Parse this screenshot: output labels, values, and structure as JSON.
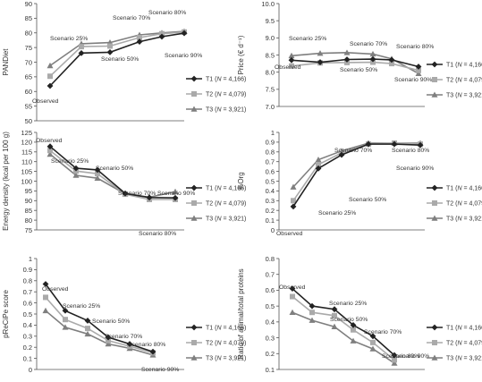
{
  "series_names": [
    "T1",
    "T2",
    "T3"
  ],
  "series_n": [
    "4,166",
    "4,079",
    "3,921"
  ],
  "n_label": "N",
  "colors": [
    "#222222",
    "#aaaaaa",
    "#7f7f7f"
  ],
  "markers": [
    "diamond",
    "square",
    "triangle"
  ],
  "chart_data": [
    {
      "type": "line",
      "ylabel": "PANDiet",
      "ylim": [
        50,
        90
      ],
      "yticks": [
        "50",
        "55",
        "60",
        "65",
        "70",
        "75",
        "80",
        "85",
        "90"
      ],
      "grid": false,
      "legend": "right",
      "x": [
        "Observed",
        "Scenario 25%",
        "Scenario 50%",
        "Scenario 70%",
        "Scenario 80%",
        "Scenario 90%"
      ],
      "series": [
        {
          "name": "T1",
          "values": [
            61.9,
            73.1,
            73.4,
            77.0,
            78.7,
            79.9
          ]
        },
        {
          "name": "T2",
          "values": [
            65.2,
            75.3,
            75.5,
            78.4,
            79.7,
            80.3
          ]
        },
        {
          "name": "T3",
          "values": [
            68.8,
            76.3,
            76.7,
            79.3,
            80.0,
            80.5
          ]
        }
      ],
      "annotations": [
        "Observed",
        "Scenario 25%",
        "Scenario 50%",
        "Scenario 70%",
        "Scenario 80%",
        "Scenario 90%"
      ]
    },
    {
      "type": "line",
      "ylabel": "Price (€ d⁻¹)",
      "ylim": [
        7.0,
        10.0
      ],
      "yticks": [
        "7.0",
        "7.5",
        "8.0",
        "8.5",
        "9.0",
        "9.5",
        "10.0"
      ],
      "grid": false,
      "legend": "right",
      "x": [
        "Observed",
        "Scenario 25%",
        "Scenario 50%",
        "Scenario 70%",
        "Scenario 80%",
        "Scenario 90%"
      ],
      "series": [
        {
          "name": "T1",
          "values": [
            8.35,
            8.29,
            8.37,
            8.38,
            8.36,
            8.16
          ]
        },
        {
          "name": "T2",
          "values": [
            8.18,
            8.27,
            8.28,
            8.29,
            8.25,
            8.05
          ]
        },
        {
          "name": "T3",
          "values": [
            8.48,
            8.55,
            8.57,
            8.53,
            8.39,
            7.96
          ]
        }
      ],
      "annotations": [
        "Observed",
        "Scenario 25%",
        "Scenario 50%",
        "Scenario 70%",
        "Scenario 80%",
        "Scenario 90%"
      ]
    },
    {
      "type": "line",
      "ylabel": "Energy density (kcal per 100 g)",
      "ylim": [
        75,
        125
      ],
      "yticks": [
        "75",
        "80",
        "85",
        "90",
        "95",
        "100",
        "105",
        "110",
        "115",
        "120",
        "125"
      ],
      "grid": false,
      "legend": "right",
      "x": [
        "Observed",
        "Scenario 25%",
        "Scenario 50%",
        "Scenario 70%",
        "Scenario 80%",
        "Scenario 90%"
      ],
      "series": [
        {
          "name": "T1",
          "values": [
            117.8,
            106.6,
            105.8,
            93.7,
            91.6,
            91.4
          ]
        },
        {
          "name": "T2",
          "values": [
            115.7,
            105.2,
            103.8,
            93.3,
            90.6,
            90.6
          ]
        },
        {
          "name": "T3",
          "values": [
            113.8,
            103.0,
            101.5,
            93.5,
            91.8,
            94.6
          ]
        }
      ],
      "annotations": [
        "Observed",
        "Scenario 25%",
        "Scenario 50%",
        "Scenario 70%",
        "Scenario 80%",
        "Scenario 90%"
      ]
    },
    {
      "type": "line",
      "ylabel": "%Org",
      "ylim": [
        0,
        1
      ],
      "yticks": [
        "0",
        "0.1",
        "0.2",
        "0.3",
        "0.4",
        "0.5",
        "0.6",
        "0.7",
        "0.8",
        "0.9",
        "1"
      ],
      "grid": false,
      "legend": "right",
      "x": [
        "Observed",
        "Scenario 25%",
        "Scenario 50%",
        "Scenario 70%",
        "Scenario 80%",
        "Scenario 90%"
      ],
      "series": [
        {
          "name": "T1",
          "values": [
            0.24,
            0.63,
            0.77,
            0.88,
            0.88,
            0.87
          ]
        },
        {
          "name": "T2",
          "values": [
            0.3,
            0.67,
            0.79,
            0.88,
            0.89,
            0.88
          ]
        },
        {
          "name": "T3",
          "values": [
            0.44,
            0.72,
            0.81,
            0.89,
            0.89,
            0.89
          ]
        }
      ],
      "annotations": [
        "Observed",
        "Scenario 25%",
        "Scenario 50%",
        "Scenario 70%",
        "Scenario 80%",
        "Scenario 90%"
      ]
    },
    {
      "type": "line",
      "ylabel": "pReCiPe score",
      "ylim": [
        0,
        1
      ],
      "yticks": [
        "0",
        "0.1",
        "0.2",
        "0.3",
        "0.4",
        "0.5",
        "0.6",
        "0.7",
        "0.8",
        "0.9",
        "1"
      ],
      "grid": false,
      "legend": "right",
      "x": [
        "Observed",
        "Scenario 25%",
        "Scenario 50%",
        "Scenario 70%",
        "Scenario 80%",
        "Scenario 90%"
      ],
      "series": [
        {
          "name": "T1",
          "values": [
            0.77,
            0.53,
            0.44,
            0.29,
            0.23,
            0.16
          ]
        },
        {
          "name": "T2",
          "values": [
            0.65,
            0.45,
            0.37,
            0.26,
            0.21,
            0.15
          ]
        },
        {
          "name": "T3",
          "values": [
            0.53,
            0.38,
            0.32,
            0.23,
            0.19,
            0.13
          ]
        }
      ],
      "annotations": [
        "Observed",
        "Scenario 25%",
        "Scenario 50%",
        "Scenario 70%",
        "Scenario 80%",
        "Scenario 90%"
      ]
    },
    {
      "type": "line",
      "ylabel": "Ratio of animal/total proteins",
      "ylim": [
        0.1,
        0.8
      ],
      "yticks": [
        "0.1",
        "0.2",
        "0.3",
        "0.4",
        "0.5",
        "0.6",
        "0.7",
        "0.8"
      ],
      "grid": false,
      "legend": "right",
      "x": [
        "Observed",
        "Scenario 25%",
        "Scenario 50%",
        "Scenario 70%",
        "Scenario 80%",
        "Scenario 90%"
      ],
      "series": [
        {
          "name": "T1",
          "values": [
            0.61,
            0.5,
            0.48,
            0.38,
            0.31,
            0.19
          ]
        },
        {
          "name": "T2",
          "values": [
            0.56,
            0.46,
            0.44,
            0.35,
            0.27,
            0.16
          ]
        },
        {
          "name": "T3",
          "values": [
            0.46,
            0.41,
            0.37,
            0.28,
            0.23,
            0.14
          ]
        }
      ],
      "annotations": [
        "Observed",
        "Scenario 25%",
        "Scenario 50%",
        "Scenario 70%",
        "Scenario 80%",
        "Scenario 90%"
      ]
    }
  ]
}
